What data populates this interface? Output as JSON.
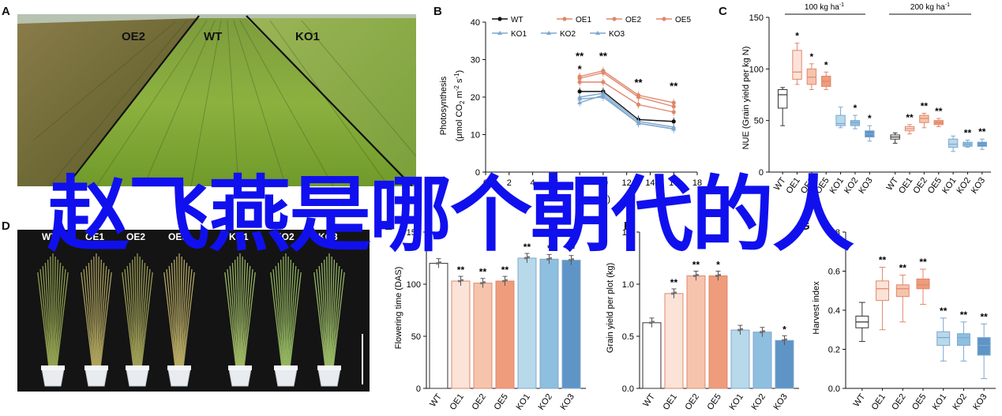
{
  "panels": {
    "A": {
      "letter": "A",
      "labels": [
        "OE2",
        "WT",
        "KO1"
      ]
    },
    "B": {
      "letter": "B",
      "ylabel_line1": "Photosynthesis",
      "ylabel_line2": "(μmol CO",
      "ylabel_sub": "2",
      "ylabel_rest": " m",
      "ylabel_sup1": "-2",
      "ylabel_s": " s",
      "ylabel_sup2": "-1",
      "ylabel_close": ")",
      "xlabel": "Time (h)",
      "legend": [
        "WT",
        "OE1",
        "OE2",
        "OE5",
        "KO1",
        "KO2",
        "KO3"
      ]
    },
    "C": {
      "letter": "C",
      "ylabel": "NUE (Grain yield per kg N)",
      "group1": "100 kg ha",
      "group1_sup": "-1",
      "group2": "200 kg ha",
      "group2_sup": "-1"
    },
    "D": {
      "letter": "D",
      "labels": [
        "WT",
        "OE1",
        "OE2",
        "OE5",
        "KO1",
        "KO2",
        "KO3"
      ]
    },
    "E": {
      "letter": "E",
      "ylabel": "Flowering time (DAS)"
    },
    "F": {
      "letter": "F",
      "ylabel": "Grain yield per plot (kg)"
    },
    "G": {
      "letter": "G",
      "ylabel": "Harvest index"
    }
  },
  "overlay_text": "赵飞燕是哪个朝代的人",
  "colors": {
    "wt": "#111111",
    "oe": "#e0876a",
    "oe_fill1": "#fbe3d8",
    "oe_fill2": "#f6c4ad",
    "oe_fill3": "#ee9c7c",
    "ko": "#7da7cf",
    "ko_fill1": "#b8d9ea",
    "ko_fill2": "#8ebfdf",
    "ko_fill3": "#5e94c6",
    "overlay": "#1010ee"
  },
  "chart_data": [
    {
      "panel": "B",
      "type": "line",
      "xlabel": "Time (h)",
      "ylabel": "Photosynthesis (μmol CO2 m-2 s-1)",
      "x": [
        8,
        10,
        13,
        16
      ],
      "xlim": [
        0,
        18
      ],
      "xticks": [
        0,
        2,
        4,
        6,
        8,
        10,
        12,
        14,
        16,
        18
      ],
      "ylim": [
        0,
        40
      ],
      "yticks": [
        0,
        10,
        20,
        30,
        40
      ],
      "series": [
        {
          "name": "WT",
          "values": [
            21.5,
            21.5,
            14,
            13.5
          ]
        },
        {
          "name": "OE1",
          "values": [
            24,
            24,
            18,
            16
          ]
        },
        {
          "name": "OE2",
          "values": [
            25.5,
            27,
            20.5,
            18.5
          ]
        },
        {
          "name": "OE5",
          "values": [
            25,
            26.5,
            20,
            17.5
          ]
        },
        {
          "name": "KO1",
          "values": [
            18.5,
            20.5,
            13,
            11.5
          ]
        },
        {
          "name": "KO2",
          "values": [
            19.5,
            20,
            13,
            11.5
          ]
        },
        {
          "name": "KO3",
          "values": [
            20,
            21,
            13.5,
            12
          ]
        }
      ],
      "annotations": [
        {
          "x": 8,
          "y": 30,
          "text": "**"
        },
        {
          "x": 8,
          "y": 26.5,
          "text": "*"
        },
        {
          "x": 10,
          "y": 30,
          "text": "**"
        },
        {
          "x": 13,
          "y": 23,
          "text": "**"
        },
        {
          "x": 16,
          "y": 22,
          "text": "**"
        }
      ]
    },
    {
      "panel": "C",
      "type": "box",
      "ylabel": "NUE (Grain yield per kg N)",
      "ylim": [
        0,
        150
      ],
      "yticks": [
        0,
        50,
        100,
        150
      ],
      "categories": [
        "WT",
        "OE1",
        "OE2",
        "OE5",
        "KO1",
        "KO2",
        "KO3",
        "WT",
        "OE1",
        "OE2",
        "OE5",
        "KO1",
        "KO2",
        "KO3"
      ],
      "boxes": [
        [
          45,
          62,
          75,
          80,
          82
        ],
        [
          85,
          90,
          97,
          118,
          125
        ],
        [
          80,
          85,
          92,
          100,
          105
        ],
        [
          80,
          83,
          88,
          93,
          97
        ],
        [
          43,
          45,
          47,
          55,
          63
        ],
        [
          42,
          45,
          48,
          50,
          55
        ],
        [
          30,
          34,
          37,
          40,
          45
        ],
        [
          28,
          32,
          34,
          36,
          38
        ],
        [
          37,
          40,
          42,
          44,
          46
        ],
        [
          43,
          48,
          52,
          55,
          57
        ],
        [
          44,
          46,
          48,
          50,
          52
        ],
        [
          20,
          24,
          27,
          32,
          35
        ],
        [
          24,
          25,
          27,
          29,
          31
        ],
        [
          22,
          25,
          27,
          29,
          32
        ]
      ],
      "significance": [
        "",
        "*",
        "*",
        "*",
        "",
        "*",
        "*",
        "",
        "**",
        "**",
        "**",
        "",
        "**",
        "**"
      ]
    },
    {
      "panel": "E",
      "type": "bar",
      "ylabel": "Flowering time (DAS)",
      "ylim": [
        0,
        150
      ],
      "yticks": [
        0,
        50,
        100,
        150
      ],
      "categories": [
        "WT",
        "OE1",
        "OE2",
        "OE5",
        "KO1",
        "KO2",
        "KO3"
      ],
      "values": [
        120,
        103,
        101,
        103,
        125,
        124,
        123
      ],
      "significance": [
        "",
        "**",
        "**",
        "**",
        "**",
        "*",
        "**"
      ]
    },
    {
      "panel": "F",
      "type": "bar",
      "ylabel": "Grain yield per plot (kg)",
      "ylim": [
        0,
        1.5
      ],
      "yticks": [
        0.0,
        0.5,
        1.0,
        1.5
      ],
      "categories": [
        "WT",
        "OE1",
        "OE2",
        "OE5",
        "KO1",
        "KO2",
        "KO3"
      ],
      "values": [
        0.63,
        0.91,
        1.08,
        1.08,
        0.56,
        0.54,
        0.46
      ],
      "significance": [
        "",
        "**",
        "**",
        "*",
        "",
        "",
        "*"
      ]
    },
    {
      "panel": "G",
      "type": "box",
      "ylabel": "Harvest index",
      "ylim": [
        0,
        0.8
      ],
      "yticks": [
        0.0,
        0.2,
        0.4,
        0.6,
        0.8
      ],
      "categories": [
        "WT",
        "OE1",
        "OE2",
        "OE5",
        "KO1",
        "KO2",
        "KO3"
      ],
      "boxes": [
        [
          0.24,
          0.31,
          0.34,
          0.37,
          0.44
        ],
        [
          0.3,
          0.45,
          0.51,
          0.55,
          0.62
        ],
        [
          0.34,
          0.47,
          0.51,
          0.53,
          0.58
        ],
        [
          0.43,
          0.51,
          0.53,
          0.56,
          0.61
        ],
        [
          0.14,
          0.22,
          0.26,
          0.29,
          0.36
        ],
        [
          0.14,
          0.22,
          0.26,
          0.28,
          0.34
        ],
        [
          0.05,
          0.17,
          0.22,
          0.26,
          0.33
        ]
      ],
      "significance": [
        "",
        "**",
        "**",
        "**",
        "**",
        "**",
        "**"
      ]
    }
  ]
}
